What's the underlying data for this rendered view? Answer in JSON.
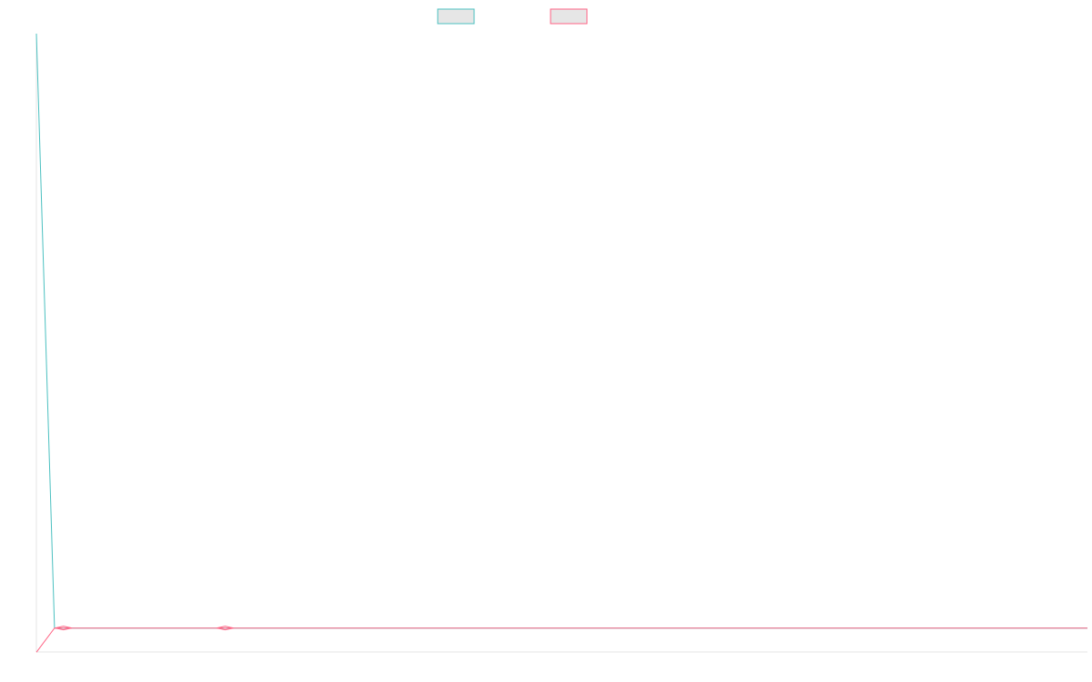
{
  "chart_data": {
    "type": "line",
    "title": "",
    "xlabel": "",
    "ylabel": "",
    "grid": false,
    "legend_position": "top-center",
    "x": [
      0,
      1,
      2,
      3,
      4,
      5,
      6,
      7,
      8,
      9,
      10,
      11,
      12,
      13,
      14,
      15,
      16,
      17,
      18,
      19,
      20,
      21,
      22,
      23,
      24,
      25,
      26,
      27,
      28,
      29,
      30,
      31,
      32,
      33,
      34,
      35,
      36,
      37,
      38,
      39,
      40,
      41,
      42,
      43,
      44,
      45,
      46,
      47,
      48,
      49,
      50,
      51,
      52,
      53,
      54,
      55,
      56,
      57,
      58,
      59,
      60,
      61,
      62,
      63,
      64,
      65,
      66,
      67,
      68,
      69,
      70,
      71,
      72,
      73,
      74,
      75,
      76,
      77,
      78,
      79,
      80,
      81,
      82,
      83,
      84,
      85,
      86,
      87,
      88,
      89,
      90,
      91,
      92,
      93,
      94,
      95,
      96,
      97,
      98,
      99,
      100,
      101,
      102,
      103,
      104,
      105,
      106,
      107,
      108,
      109,
      110,
      111,
      112,
      113,
      114,
      115,
      116
    ],
    "xlim": [
      0,
      116
    ],
    "ylim": [
      0,
      100
    ],
    "series": [
      {
        "color": "#4bc0c0",
        "fill": "#e6e6e6",
        "values": [
          100,
          2,
          2,
          2,
          2,
          2,
          2,
          2,
          2,
          2,
          2,
          2,
          2,
          2,
          2,
          2,
          2,
          2,
          2,
          2,
          2,
          2,
          2,
          2,
          2,
          2,
          2,
          2,
          2,
          2,
          2,
          2,
          2,
          2,
          2,
          2,
          2,
          2,
          2,
          2,
          2,
          2,
          2,
          2,
          2,
          2,
          2,
          2,
          2,
          2,
          2,
          2,
          2,
          2,
          2,
          2,
          2,
          2,
          2,
          2,
          2,
          2,
          2,
          2,
          2,
          2,
          2,
          2,
          2,
          2,
          2,
          2,
          2,
          2,
          2,
          2,
          2,
          2,
          2,
          2,
          2,
          2,
          2,
          2,
          2,
          2,
          2,
          2,
          2,
          2,
          2,
          2,
          2,
          2,
          2,
          2,
          2,
          2,
          2,
          2,
          2,
          2,
          2,
          2,
          2,
          2,
          2,
          2,
          2,
          2,
          2,
          2,
          2,
          2,
          2,
          2,
          2
        ]
      },
      {
        "color": "#ff6384",
        "fill": "#e6e6e6",
        "values": [
          -2,
          2,
          2,
          2,
          2,
          2,
          2,
          2,
          2,
          2,
          2,
          2,
          2,
          2,
          2,
          2,
          2,
          2,
          2,
          2,
          2,
          2,
          2,
          2,
          2,
          2,
          2,
          2,
          2,
          2,
          2,
          2,
          2,
          2,
          2,
          2,
          2,
          2,
          2,
          2,
          2,
          2,
          2,
          2,
          2,
          2,
          2,
          2,
          2,
          2,
          2,
          2,
          2,
          2,
          2,
          2,
          2,
          2,
          2,
          2,
          2,
          2,
          2,
          2,
          2,
          2,
          2,
          2,
          2,
          2,
          2,
          2,
          2,
          2,
          2,
          2,
          2,
          2,
          2,
          2,
          2,
          2,
          2,
          2,
          2,
          2,
          2,
          2,
          2,
          2,
          2,
          2,
          2,
          2,
          2,
          2,
          2,
          2,
          2,
          2,
          2,
          2,
          2,
          2,
          2,
          2,
          2,
          2,
          2,
          2,
          2,
          2,
          2,
          2,
          2,
          2,
          2
        ],
        "point_markers_at": [
          2,
          20
        ]
      }
    ]
  }
}
